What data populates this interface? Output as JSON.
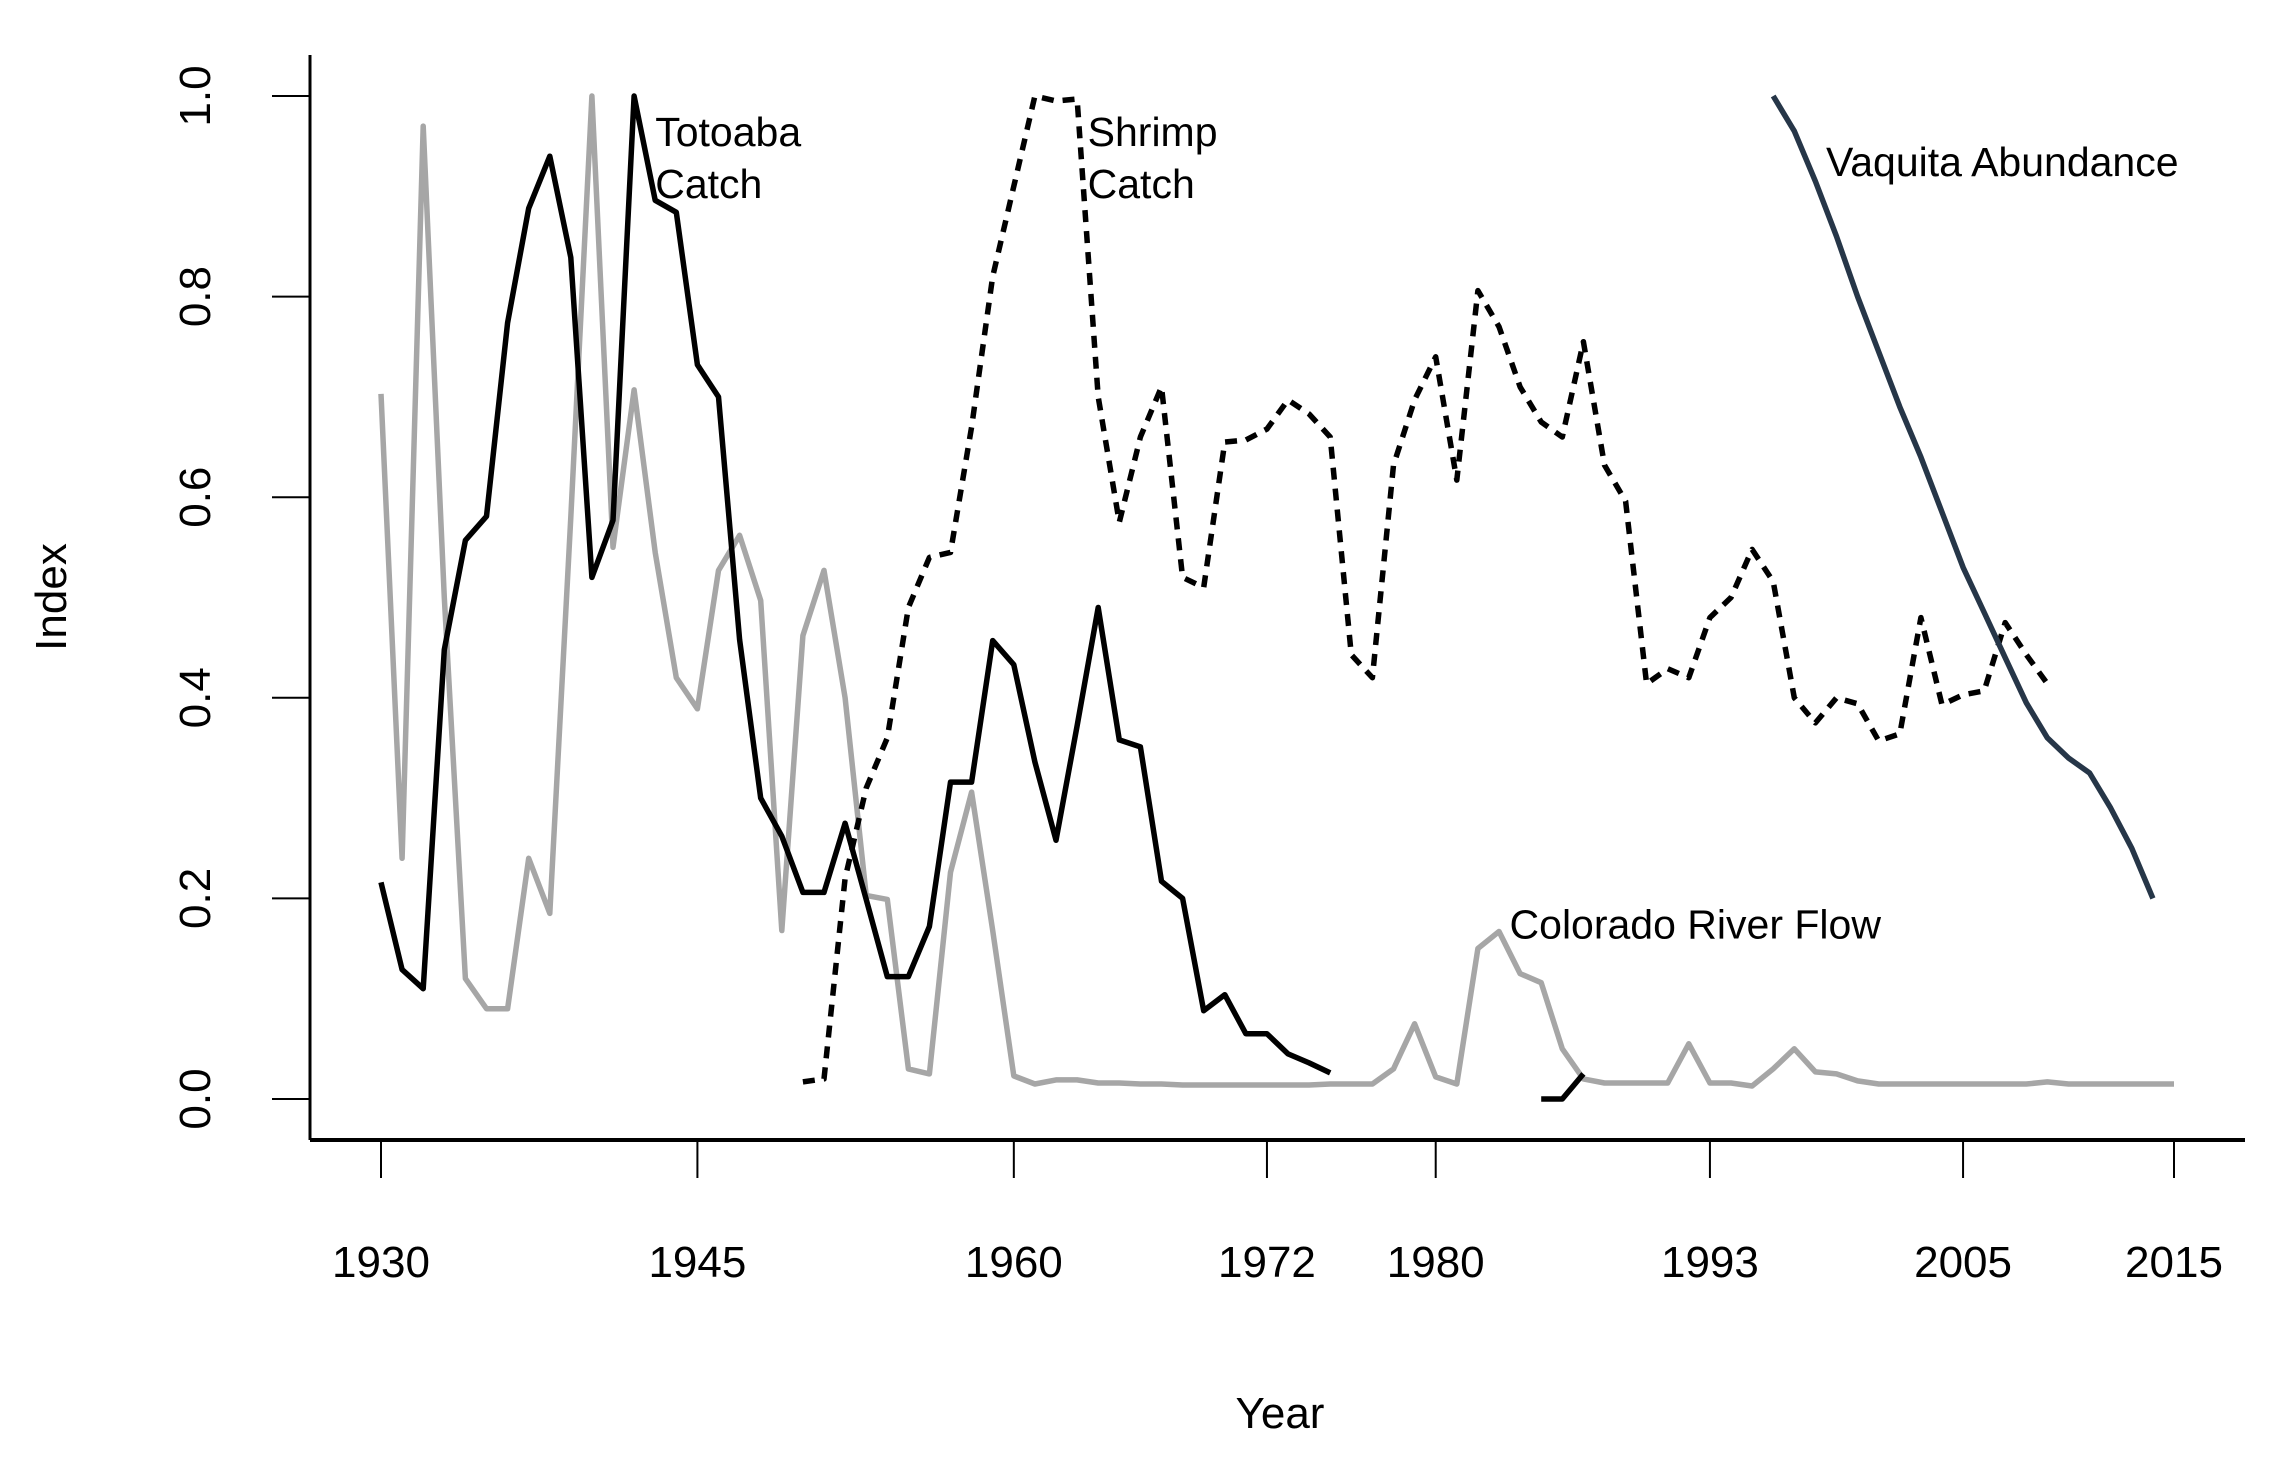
{
  "chart_data": {
    "type": "line",
    "title": "",
    "xlabel": "Year",
    "ylabel": "Index",
    "xlim": [
      1927,
      2018
    ],
    "ylim": [
      -0.04,
      1.04
    ],
    "x_ticks": [
      1930,
      1945,
      1960,
      1972,
      1980,
      1993,
      2005,
      2015
    ],
    "y_ticks": [
      "0.0",
      "0.2",
      "0.4",
      "0.6",
      "0.8",
      "1.0"
    ],
    "y_tick_values": [
      0,
      0.2,
      0.4,
      0.6,
      0.8,
      1.0
    ],
    "grid": false,
    "series": [
      {
        "name": "Colorado River Flow",
        "label_lines": [
          "Colorado River Flow"
        ],
        "label_anchor": [
          1983.5,
          0.16
        ],
        "color": "#a6a6a6",
        "dash": false,
        "segments": [
          [
            [
              1930,
              0.703
            ],
            [
              1931,
              0.24
            ],
            [
              1932,
              0.97
            ],
            [
              1933,
              0.5
            ],
            [
              1934,
              0.12
            ],
            [
              1935,
              0.09
            ],
            [
              1936,
              0.09
            ],
            [
              1937,
              0.24
            ],
            [
              1938,
              0.185
            ],
            [
              1939,
              0.58
            ],
            [
              1940,
              1.0
            ],
            [
              1941,
              0.55
            ],
            [
              1942,
              0.707
            ],
            [
              1943,
              0.545
            ],
            [
              1944,
              0.42
            ],
            [
              1945,
              0.389
            ],
            [
              1946,
              0.527
            ],
            [
              1947,
              0.562
            ],
            [
              1948,
              0.497
            ],
            [
              1949,
              0.168
            ],
            [
              1950,
              0.462
            ],
            [
              1951,
              0.527
            ],
            [
              1952,
              0.4
            ],
            [
              1953,
              0.203
            ],
            [
              1954,
              0.199
            ],
            [
              1955,
              0.03
            ],
            [
              1956,
              0.025
            ],
            [
              1957,
              0.226
            ],
            [
              1958,
              0.306
            ],
            [
              1959,
              0.168
            ],
            [
              1960,
              0.023
            ],
            [
              1961,
              0.015
            ],
            [
              1962,
              0.019
            ],
            [
              1963,
              0.019
            ],
            [
              1964,
              0.016
            ],
            [
              1965,
              0.016
            ],
            [
              1966,
              0.015
            ],
            [
              1967,
              0.015
            ],
            [
              1968,
              0.014
            ],
            [
              1969,
              0.014
            ],
            [
              1970,
              0.014
            ],
            [
              1971,
              0.014
            ],
            [
              1972,
              0.014
            ],
            [
              1973,
              0.014
            ],
            [
              1974,
              0.014
            ],
            [
              1975,
              0.015
            ],
            [
              1976,
              0.015
            ],
            [
              1977,
              0.015
            ],
            [
              1978,
              0.03
            ],
            [
              1979,
              0.075
            ],
            [
              1980,
              0.022
            ],
            [
              1981,
              0.015
            ],
            [
              1982,
              0.15
            ],
            [
              1983,
              0.167
            ],
            [
              1984,
              0.125
            ],
            [
              1985,
              0.116
            ],
            [
              1986,
              0.05
            ],
            [
              1987,
              0.02
            ],
            [
              1988,
              0.016
            ],
            [
              1989,
              0.016
            ],
            [
              1990,
              0.016
            ],
            [
              1991,
              0.016
            ],
            [
              1992,
              0.055
            ],
            [
              1993,
              0.016
            ],
            [
              1994,
              0.016
            ],
            [
              1995,
              0.013
            ],
            [
              1996,
              0.03
            ],
            [
              1997,
              0.05
            ],
            [
              1998,
              0.027
            ],
            [
              1999,
              0.025
            ],
            [
              2000,
              0.018
            ],
            [
              2001,
              0.015
            ],
            [
              2002,
              0.015
            ],
            [
              2003,
              0.015
            ],
            [
              2004,
              0.015
            ],
            [
              2005,
              0.015
            ],
            [
              2006,
              0.015
            ],
            [
              2007,
              0.015
            ],
            [
              2008,
              0.015
            ],
            [
              2009,
              0.017
            ],
            [
              2010,
              0.015
            ],
            [
              2011,
              0.015
            ],
            [
              2012,
              0.015
            ],
            [
              2013,
              0.015
            ],
            [
              2014,
              0.015
            ],
            [
              2015,
              0.015
            ]
          ]
        ]
      },
      {
        "name": "Totoaba Catch",
        "label_lines": [
          "Totoaba",
          "Catch"
        ],
        "label_anchor": [
          1943.0,
          0.95
        ],
        "color": "#000000",
        "dash": false,
        "segments": [
          [
            [
              1930,
              0.216
            ],
            [
              1931,
              0.129
            ],
            [
              1932,
              0.11
            ],
            [
              1933,
              0.448
            ],
            [
              1934,
              0.557
            ],
            [
              1935,
              0.581
            ],
            [
              1936,
              0.774
            ],
            [
              1937,
              0.888
            ],
            [
              1938,
              0.94
            ],
            [
              1939,
              0.839
            ],
            [
              1940,
              0.52
            ],
            [
              1941,
              0.577
            ],
            [
              1942,
              1.0
            ],
            [
              1943,
              0.896
            ],
            [
              1944,
              0.884
            ],
            [
              1945,
              0.732
            ],
            [
              1946,
              0.7
            ],
            [
              1947,
              0.458
            ],
            [
              1948,
              0.3
            ],
            [
              1949,
              0.262
            ],
            [
              1950,
              0.206
            ],
            [
              1951,
              0.206
            ],
            [
              1952,
              0.275
            ],
            [
              1953,
              0.199
            ],
            [
              1954,
              0.122
            ],
            [
              1955,
              0.122
            ],
            [
              1956,
              0.172
            ],
            [
              1957,
              0.316
            ],
            [
              1958,
              0.316
            ],
            [
              1959,
              0.457
            ],
            [
              1960,
              0.433
            ],
            [
              1961,
              0.336
            ],
            [
              1962,
              0.258
            ],
            [
              1963,
              0.372
            ],
            [
              1964,
              0.49
            ],
            [
              1965,
              0.358
            ],
            [
              1966,
              0.351
            ],
            [
              1967,
              0.217
            ],
            [
              1968,
              0.2
            ],
            [
              1969,
              0.088
            ],
            [
              1970,
              0.104
            ],
            [
              1971,
              0.065
            ],
            [
              1972,
              0.065
            ],
            [
              1973,
              0.045
            ],
            [
              1974,
              0.036
            ],
            [
              1975,
              0.026
            ]
          ],
          [
            [
              1985,
              0.0
            ],
            [
              1986,
              0.0
            ],
            [
              1987,
              0.025
            ]
          ]
        ]
      },
      {
        "name": "Shrimp Catch",
        "label_lines": [
          "Shrimp",
          "Catch"
        ],
        "label_anchor": [
          1963.5,
          0.95
        ],
        "color": "#000000",
        "dash": true,
        "segments": [
          [
            [
              1950,
              0.017
            ],
            [
              1951,
              0.02
            ],
            [
              1952,
              0.22
            ],
            [
              1953,
              0.31
            ],
            [
              1954,
              0.36
            ],
            [
              1955,
              0.49
            ],
            [
              1956,
              0.54
            ],
            [
              1957,
              0.545
            ],
            [
              1958,
              0.67
            ],
            [
              1959,
              0.82
            ],
            [
              1960,
              0.91
            ],
            [
              1961,
              1.0
            ],
            [
              1962,
              0.995
            ],
            [
              1963,
              0.997
            ],
            [
              1964,
              0.7
            ],
            [
              1965,
              0.575
            ],
            [
              1966,
              0.66
            ],
            [
              1967,
              0.71
            ],
            [
              1968,
              0.52
            ],
            [
              1969,
              0.51
            ],
            [
              1970,
              0.655
            ],
            [
              1971,
              0.657
            ],
            [
              1972,
              0.668
            ],
            [
              1973,
              0.697
            ],
            [
              1974,
              0.683
            ],
            [
              1975,
              0.66
            ],
            [
              1976,
              0.443
            ],
            [
              1977,
              0.42
            ],
            [
              1978,
              0.632
            ],
            [
              1979,
              0.697
            ],
            [
              1980,
              0.74
            ],
            [
              1981,
              0.617
            ],
            [
              1982,
              0.806
            ],
            [
              1983,
              0.77
            ],
            [
              1984,
              0.71
            ],
            [
              1985,
              0.675
            ],
            [
              1986,
              0.66
            ],
            [
              1987,
              0.755
            ],
            [
              1988,
              0.632
            ],
            [
              1989,
              0.596
            ],
            [
              1990,
              0.414
            ],
            [
              1991,
              0.429
            ],
            [
              1992,
              0.42
            ],
            [
              1993,
              0.48
            ],
            [
              1994,
              0.5
            ],
            [
              1995,
              0.548
            ],
            [
              1996,
              0.516
            ],
            [
              1997,
              0.4
            ],
            [
              1998,
              0.375
            ],
            [
              1999,
              0.4
            ],
            [
              2000,
              0.394
            ],
            [
              2001,
              0.357
            ],
            [
              2002,
              0.364
            ],
            [
              2003,
              0.48
            ],
            [
              2004,
              0.393
            ],
            [
              2005,
              0.403
            ],
            [
              2006,
              0.407
            ],
            [
              2007,
              0.475
            ],
            [
              2008,
              0.443
            ],
            [
              2009,
              0.414
            ]
          ]
        ]
      },
      {
        "name": "Vaquita Abundance",
        "label_lines": [
          "Vaquita Abundance"
        ],
        "label_anchor": [
          1998.5,
          0.92
        ],
        "color": "#263648",
        "dash": false,
        "segments": [
          [
            [
              1996,
              1.0
            ],
            [
              1997,
              0.965
            ],
            [
              1998,
              0.915
            ],
            [
              1999,
              0.86
            ],
            [
              2000,
              0.8
            ],
            [
              2001,
              0.745
            ],
            [
              2002,
              0.69
            ],
            [
              2003,
              0.64
            ],
            [
              2004,
              0.585
            ],
            [
              2005,
              0.53
            ],
            [
              2006,
              0.485
            ],
            [
              2007,
              0.44
            ],
            [
              2008,
              0.395
            ],
            [
              2009,
              0.36
            ],
            [
              2010,
              0.34
            ],
            [
              2011,
              0.325
            ],
            [
              2012,
              0.29
            ],
            [
              2013,
              0.25
            ],
            [
              2014,
              0.2
            ]
          ]
        ]
      }
    ]
  }
}
